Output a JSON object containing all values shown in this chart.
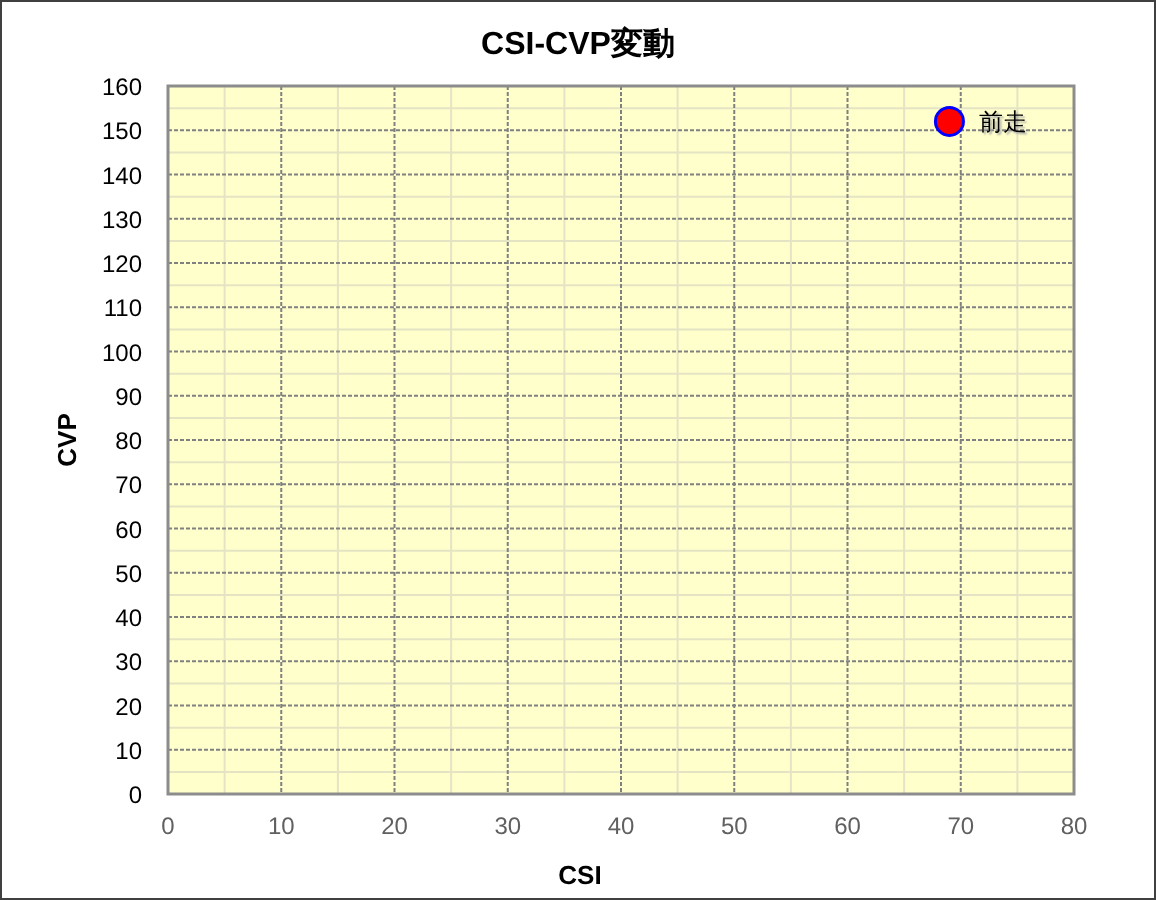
{
  "chart_data": {
    "type": "scatter",
    "title": "CSI-CVP変動",
    "xlabel": "CSI",
    "ylabel": "CVP",
    "x": [
      69
    ],
    "series": [
      {
        "name": "前走",
        "color": "#ff0000",
        "values": [
          152
        ]
      }
    ],
    "xlim": [
      0,
      80
    ],
    "xticks": [
      0,
      10,
      20,
      30,
      40,
      50,
      60,
      70,
      80
    ],
    "ylim": [
      0,
      160
    ],
    "yticks": [
      0,
      10,
      20,
      30,
      40,
      50,
      60,
      70,
      80,
      90,
      100,
      110,
      120,
      130,
      140,
      150,
      160
    ],
    "grid": true,
    "marker": "circle"
  }
}
